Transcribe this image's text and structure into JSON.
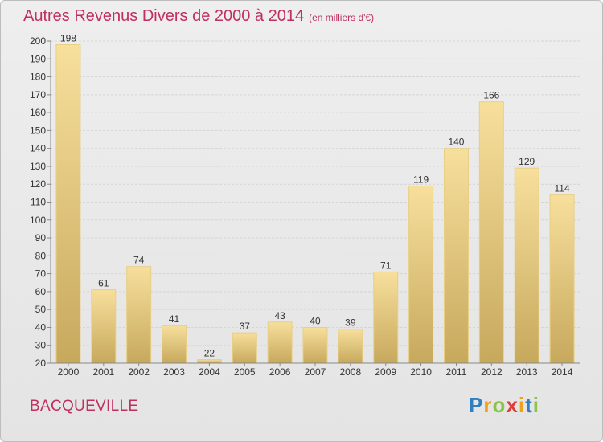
{
  "title": "Autres Revenus Divers de 2000 à 2014",
  "subtitle": "(en milliers d'€)",
  "place_name": "BACQUEVILLE",
  "logo": {
    "letters": [
      "P",
      "r",
      "o",
      "x",
      "i",
      "t",
      "i"
    ],
    "colors": [
      "#2f7fc1",
      "#f0a11a",
      "#8bc34a",
      "#e53935",
      "#f0a11a",
      "#2f7fc1",
      "#8bc34a"
    ]
  },
  "colors": {
    "title": "#c0305e",
    "bar_light": "#f5dc98",
    "bar_dark": "#c9ab5f",
    "grid": "#d8d8d8"
  },
  "chart_data": {
    "type": "bar",
    "categories": [
      "2000",
      "2001",
      "2002",
      "2003",
      "2004",
      "2005",
      "2006",
      "2007",
      "2008",
      "2009",
      "2010",
      "2011",
      "2012",
      "2013",
      "2014"
    ],
    "values": [
      198,
      61,
      74,
      41,
      22,
      37,
      43,
      40,
      39,
      71,
      119,
      140,
      166,
      129,
      114
    ],
    "title": "Autres Revenus Divers de 2000 à 2014",
    "ylim": [
      20,
      200
    ],
    "yticks": [
      20,
      30,
      40,
      50,
      60,
      70,
      80,
      90,
      100,
      110,
      120,
      130,
      140,
      150,
      160,
      170,
      180,
      190,
      200
    ],
    "grid": true
  }
}
